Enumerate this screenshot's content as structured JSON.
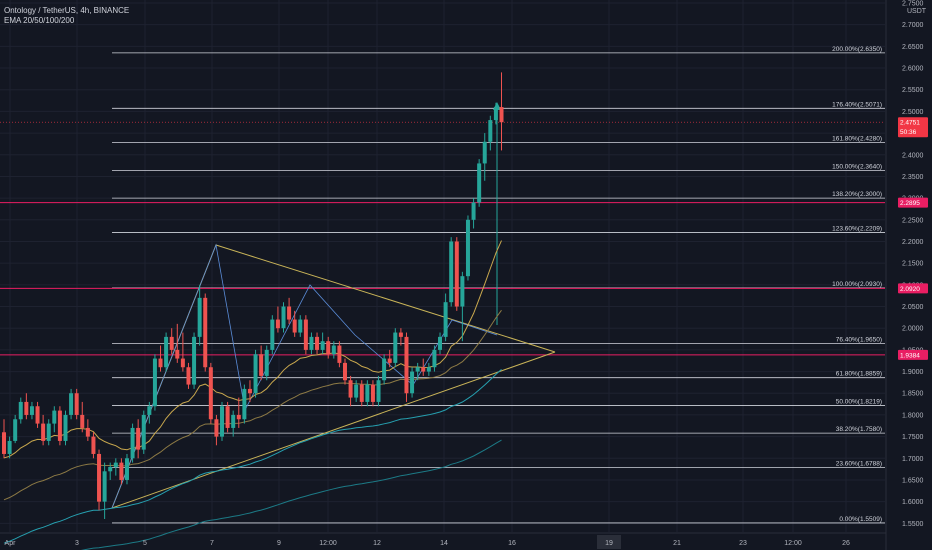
{
  "header": {
    "title": "Ontology / TetherUS, 4h, BINANCE",
    "indicator": "EMA 20/50/100/200"
  },
  "chart_data": {
    "type": "candlestick",
    "currency": "USDT",
    "ylim": [
      1.53,
      2.75
    ],
    "y_ticks": [
      "2.7500",
      "2.7000",
      "2.6500",
      "2.6000",
      "2.5500",
      "2.5000",
      "2.4500",
      "2.4000",
      "2.3500",
      "2.3000",
      "2.2500",
      "2.2000",
      "2.1500",
      "2.1000",
      "2.0500",
      "2.0000",
      "1.9500",
      "1.9000",
      "1.8500",
      "1.8000",
      "1.7500",
      "1.7000",
      "1.6500",
      "1.6000",
      "1.5500"
    ],
    "x_ticks": [
      "Apr",
      "3",
      "5",
      "7",
      "9",
      "12:00",
      "12",
      "14",
      "16",
      "19",
      "21",
      "23",
      "12:00",
      "26"
    ],
    "x_highlight": "19",
    "fib_levels": [
      {
        "label": "200.00%(2.6350)",
        "value": 2.635
      },
      {
        "label": "176.40%(2.5071)",
        "value": 2.5071
      },
      {
        "label": "161.80%(2.4280)",
        "value": 2.428
      },
      {
        "label": "150.00%(2.3640)",
        "value": 2.364
      },
      {
        "label": "138.20%(2.3000)",
        "value": 2.3
      },
      {
        "label": "123.60%(2.2209)",
        "value": 2.2209
      },
      {
        "label": "100.00%(2.0930)",
        "value": 2.093
      },
      {
        "label": "76.40%(1.9650)",
        "value": 1.965
      },
      {
        "label": "61.80%(1.8859)",
        "value": 1.8859
      },
      {
        "label": "50.00%(1.8219)",
        "value": 1.8219
      },
      {
        "label": "38.20%(1.7580)",
        "value": 1.758
      },
      {
        "label": "23.60%(1.6788)",
        "value": 1.6788
      },
      {
        "label": "0.00%(1.5509)",
        "value": 1.5509
      }
    ],
    "price_tags": [
      {
        "label": "2.4751",
        "sub": "50:36",
        "value": 2.4751,
        "color": "#f23645"
      },
      {
        "label": "2.2895",
        "value": 2.2895,
        "color": "#e91e63"
      },
      {
        "label": "2.0920",
        "value": 2.092,
        "color": "#e91e63"
      },
      {
        "label": "1.9384",
        "value": 1.9384,
        "color": "#e91e63"
      }
    ],
    "candles_ohlc": [
      [
        1.76,
        1.79,
        1.7,
        1.71
      ],
      [
        1.71,
        1.75,
        1.7,
        1.74
      ],
      [
        1.74,
        1.8,
        1.735,
        1.79
      ],
      [
        1.79,
        1.84,
        1.78,
        1.83
      ],
      [
        1.83,
        1.85,
        1.79,
        1.8
      ],
      [
        1.8,
        1.83,
        1.79,
        1.82
      ],
      [
        1.82,
        1.83,
        1.77,
        1.78
      ],
      [
        1.78,
        1.8,
        1.73,
        1.74
      ],
      [
        1.74,
        1.79,
        1.73,
        1.78
      ],
      [
        1.78,
        1.82,
        1.76,
        1.81
      ],
      [
        1.81,
        1.82,
        1.73,
        1.74
      ],
      [
        1.74,
        1.81,
        1.73,
        1.8
      ],
      [
        1.8,
        1.86,
        1.79,
        1.85
      ],
      [
        1.85,
        1.86,
        1.79,
        1.8
      ],
      [
        1.8,
        1.83,
        1.76,
        1.77
      ],
      [
        1.77,
        1.79,
        1.74,
        1.75
      ],
      [
        1.75,
        1.76,
        1.7,
        1.71
      ],
      [
        1.71,
        1.72,
        1.58,
        1.6
      ],
      [
        1.6,
        1.69,
        1.56,
        1.67
      ],
      [
        1.67,
        1.69,
        1.65,
        1.68
      ],
      [
        1.68,
        1.7,
        1.66,
        1.69
      ],
      [
        1.69,
        1.7,
        1.64,
        1.65
      ],
      [
        1.65,
        1.71,
        1.64,
        1.7
      ],
      [
        1.7,
        1.78,
        1.69,
        1.77
      ],
      [
        1.77,
        1.79,
        1.7,
        1.72
      ],
      [
        1.72,
        1.81,
        1.71,
        1.8
      ],
      [
        1.8,
        1.83,
        1.78,
        1.82
      ],
      [
        1.82,
        1.94,
        1.81,
        1.93
      ],
      [
        1.93,
        1.96,
        1.9,
        1.91
      ],
      [
        1.91,
        1.99,
        1.9,
        1.98
      ],
      [
        1.98,
        2.0,
        1.94,
        1.95
      ],
      [
        1.95,
        2.01,
        1.92,
        1.93
      ],
      [
        1.93,
        1.99,
        1.9,
        1.91
      ],
      [
        1.91,
        1.92,
        1.86,
        1.87
      ],
      [
        1.87,
        1.99,
        1.86,
        1.98
      ],
      [
        1.98,
        2.1,
        1.96,
        2.07
      ],
      [
        2.07,
        2.08,
        1.9,
        1.91
      ],
      [
        1.91,
        1.92,
        1.78,
        1.79
      ],
      [
        1.79,
        1.8,
        1.73,
        1.75
      ],
      [
        1.75,
        1.83,
        1.74,
        1.82
      ],
      [
        1.82,
        1.83,
        1.76,
        1.77
      ],
      [
        1.77,
        1.81,
        1.75,
        1.8
      ],
      [
        1.8,
        1.84,
        1.77,
        1.79
      ],
      [
        1.79,
        1.87,
        1.78,
        1.86
      ],
      [
        1.86,
        1.88,
        1.83,
        1.85
      ],
      [
        1.85,
        1.95,
        1.84,
        1.94
      ],
      [
        1.94,
        1.96,
        1.88,
        1.89
      ],
      [
        1.89,
        1.96,
        1.88,
        1.95
      ],
      [
        1.95,
        2.03,
        1.94,
        2.02
      ],
      [
        2.02,
        2.05,
        1.99,
        2.0
      ],
      [
        2.0,
        2.06,
        1.99,
        2.05
      ],
      [
        2.05,
        2.07,
        2.01,
        2.02
      ],
      [
        2.02,
        2.04,
        1.98,
        1.99
      ],
      [
        1.99,
        2.03,
        1.98,
        2.02
      ],
      [
        2.02,
        2.03,
        1.94,
        1.95
      ],
      [
        1.95,
        1.99,
        1.94,
        1.98
      ],
      [
        1.98,
        1.99,
        1.94,
        1.95
      ],
      [
        1.95,
        1.99,
        1.94,
        1.97
      ],
      [
        1.97,
        1.98,
        1.93,
        1.94
      ],
      [
        1.94,
        1.97,
        1.93,
        1.96
      ],
      [
        1.96,
        1.97,
        1.91,
        1.92
      ],
      [
        1.92,
        1.93,
        1.87,
        1.88
      ],
      [
        1.88,
        1.89,
        1.82,
        1.84
      ],
      [
        1.84,
        1.88,
        1.83,
        1.87
      ],
      [
        1.87,
        1.88,
        1.82,
        1.83
      ],
      [
        1.83,
        1.88,
        1.82,
        1.87
      ],
      [
        1.87,
        1.88,
        1.82,
        1.83
      ],
      [
        1.83,
        1.89,
        1.82,
        1.88
      ],
      [
        1.88,
        1.94,
        1.87,
        1.93
      ],
      [
        1.93,
        1.95,
        1.91,
        1.92
      ],
      [
        1.92,
        2.0,
        1.91,
        1.99
      ],
      [
        1.99,
        2.0,
        1.96,
        1.98
      ],
      [
        1.98,
        1.99,
        1.83,
        1.85
      ],
      [
        1.85,
        1.91,
        1.84,
        1.9
      ],
      [
        1.9,
        1.92,
        1.88,
        1.91
      ],
      [
        1.91,
        1.93,
        1.89,
        1.9
      ],
      [
        1.9,
        1.92,
        1.89,
        1.91
      ],
      [
        1.91,
        1.96,
        1.9,
        1.95
      ],
      [
        1.95,
        1.99,
        1.94,
        1.98
      ],
      [
        1.98,
        2.08,
        1.97,
        2.06
      ],
      [
        2.06,
        2.21,
        2.05,
        2.2
      ],
      [
        2.2,
        2.21,
        2.04,
        2.05
      ],
      [
        2.05,
        2.13,
        1.97,
        2.12
      ],
      [
        2.12,
        2.26,
        2.11,
        2.25
      ],
      [
        2.25,
        2.3,
        2.23,
        2.29
      ],
      [
        2.29,
        2.39,
        2.28,
        2.38
      ],
      [
        2.38,
        2.45,
        2.34,
        2.43
      ],
      [
        2.43,
        2.49,
        2.41,
        2.48
      ],
      [
        2.48,
        2.52,
        2.47,
        2.51
      ],
      [
        2.51,
        2.59,
        2.41,
        2.475
      ]
    ]
  }
}
